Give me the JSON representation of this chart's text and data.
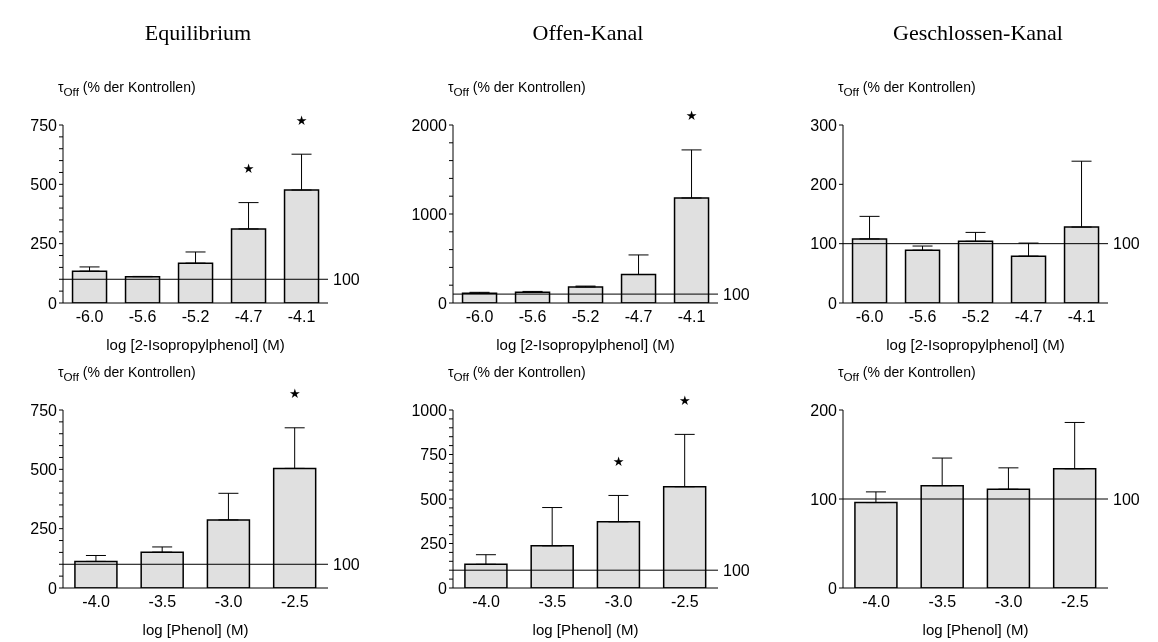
{
  "chart_data": [
    {
      "type": "bar",
      "title": "Equilibrium",
      "ylabel": "τ$_{Off}$ (% der Kontrollen)",
      "xlabel": "log [2-Isopropylphenol] (M)",
      "categories": [
        "-6.0",
        "-5.6",
        "-5.2",
        "-4.7",
        "-4.1"
      ],
      "values": [
        134,
        111,
        168,
        312,
        476
      ],
      "errors": [
        [
          134,
          152
        ],
        [
          111,
          112
        ],
        [
          168,
          215
        ],
        [
          312,
          423
        ],
        [
          476,
          627
        ]
      ],
      "color": "#e0e0e0",
      "ylim": [
        0,
        750
      ],
      "yticks": [
        0,
        {
          "value": 50,
          "label": null
        },
        {
          "value": 100,
          "label": null
        },
        {
          "value": 150,
          "label": null
        },
        {
          "value": 200,
          "label": null
        },
        250,
        {
          "value": 300,
          "label": null
        },
        {
          "value": 350,
          "label": null
        },
        {
          "value": 400,
          "label": null
        },
        {
          "value": 450,
          "label": null
        },
        500,
        {
          "value": 550,
          "label": null
        },
        {
          "value": 600,
          "label": null
        },
        {
          "value": 650,
          "label": null
        },
        {
          "value": 700,
          "label": null
        },
        750
      ],
      "ref_lines": [
        {
          "axis": "y",
          "value": 100,
          "label": "100"
        }
      ],
      "annotations": [
        {
          "text": "★",
          "x": "-4.7",
          "y": 423
        },
        {
          "text": "★",
          "x": "-4.1",
          "y": 627
        }
      ]
    },
    {
      "type": "bar",
      "title": "Offen-Kanal",
      "ylabel": "τ$_{Off}$ (% der Kontrollen)",
      "xlabel": "log [2-Isopropylphenol] (M)",
      "categories": [
        "-6.0",
        "-5.6",
        "-5.2",
        "-4.7",
        "-4.1"
      ],
      "values": [
        110,
        120,
        180,
        320,
        1180
      ],
      "errors": [
        [
          110,
          120
        ],
        [
          120,
          130
        ],
        [
          180,
          190
        ],
        [
          320,
          540
        ],
        [
          1180,
          1720
        ]
      ],
      "color": "#e0e0e0",
      "ylim": [
        0,
        2000
      ],
      "yticks": [
        0,
        {
          "value": 200,
          "label": null
        },
        {
          "value": 400,
          "label": null
        },
        {
          "value": 600,
          "label": null
        },
        {
          "value": 800,
          "label": null
        },
        1000,
        {
          "value": 1200,
          "label": null
        },
        {
          "value": 1400,
          "label": null
        },
        {
          "value": 1600,
          "label": null
        },
        {
          "value": 1800,
          "label": null
        },
        2000
      ],
      "ref_lines": [
        {
          "axis": "y",
          "value": 100,
          "label": "100"
        }
      ],
      "annotations": [
        {
          "text": "★",
          "x": "-4.1",
          "y": 1720
        }
      ]
    },
    {
      "type": "bar",
      "title": "Geschlossen-Kanal",
      "ylabel": "τ$_{Off}$ (% der Kontrollen)",
      "xlabel": "log [2-Isopropylphenol] (M)",
      "categories": [
        "-6.0",
        "-5.6",
        "-5.2",
        "-4.7",
        "-4.1"
      ],
      "values": [
        108,
        89,
        104,
        79,
        128
      ],
      "errors": [
        [
          108,
          146
        ],
        [
          89,
          96
        ],
        [
          104,
          119
        ],
        [
          79,
          101
        ],
        [
          128,
          239
        ]
      ],
      "color": "#e0e0e0",
      "ylim": [
        0,
        300
      ],
      "yticks": [
        0,
        100,
        200,
        300
      ],
      "ref_lines": [
        {
          "axis": "y",
          "value": 100,
          "label": "100"
        }
      ]
    },
    {
      "type": "bar",
      "ylabel": "τ$_{Off}$ (% der Kontrollen)",
      "xlabel": "log [Phenol] (M)",
      "categories": [
        "-4.0",
        "-3.5",
        "-3.0",
        "-2.5"
      ],
      "values": [
        112,
        151,
        287,
        504
      ],
      "errors": [
        [
          112,
          137
        ],
        [
          151,
          173
        ],
        [
          287,
          399
        ],
        [
          504,
          675
        ]
      ],
      "color": "#e0e0e0",
      "ylim": [
        0,
        750
      ],
      "yticks": [
        0,
        {
          "value": 50,
          "label": null
        },
        {
          "value": 100,
          "label": null
        },
        {
          "value": 150,
          "label": null
        },
        {
          "value": 200,
          "label": null
        },
        250,
        {
          "value": 300,
          "label": null
        },
        {
          "value": 350,
          "label": null
        },
        {
          "value": 400,
          "label": null
        },
        {
          "value": 450,
          "label": null
        },
        500,
        {
          "value": 550,
          "label": null
        },
        {
          "value": 600,
          "label": null
        },
        {
          "value": 650,
          "label": null
        },
        {
          "value": 700,
          "label": null
        },
        750
      ],
      "ref_lines": [
        {
          "axis": "y",
          "value": 100,
          "label": "100"
        }
      ],
      "annotations": [
        {
          "text": "★",
          "x": "-2.5",
          "y": 675
        }
      ]
    },
    {
      "type": "bar",
      "ylabel": "τ$_{Off}$ (% der Kontrollen)",
      "xlabel": "log [Phenol] (M)",
      "categories": [
        "-4.0",
        "-3.5",
        "-3.0",
        "-2.5"
      ],
      "values": [
        133,
        237,
        372,
        569
      ],
      "errors": [
        [
          133,
          187
        ],
        [
          237,
          452
        ],
        [
          372,
          520
        ],
        [
          569,
          863
        ]
      ],
      "color": "#e0e0e0",
      "ylim": [
        0,
        1000
      ],
      "yticks": [
        0,
        {
          "value": 50,
          "label": null
        },
        {
          "value": 100,
          "label": null
        },
        {
          "value": 150,
          "label": null
        },
        {
          "value": 200,
          "label": null
        },
        250,
        {
          "value": 300,
          "label": null
        },
        {
          "value": 350,
          "label": null
        },
        {
          "value": 400,
          "label": null
        },
        {
          "value": 450,
          "label": null
        },
        500,
        {
          "value": 550,
          "label": null
        },
        {
          "value": 600,
          "label": null
        },
        {
          "value": 650,
          "label": null
        },
        {
          "value": 700,
          "label": null
        },
        750,
        {
          "value": 800,
          "label": null
        },
        {
          "value": 850,
          "label": null
        },
        {
          "value": 900,
          "label": null
        },
        {
          "value": 950,
          "label": null
        },
        1000
      ],
      "ref_lines": [
        {
          "axis": "y",
          "value": 100,
          "label": "100"
        }
      ],
      "annotations": [
        {
          "text": "★",
          "x": "-3.0",
          "y": 520
        },
        {
          "text": "★",
          "x": "-2.5",
          "y": 863
        }
      ]
    },
    {
      "type": "bar",
      "ylabel": "τ$_{Off}$ (% der Kontrollen)",
      "xlabel": "log [Phenol] (M)",
      "categories": [
        "-4.0",
        "-3.5",
        "-3.0",
        "-2.5"
      ],
      "values": [
        96,
        115,
        111,
        134
      ],
      "errors": [
        [
          96,
          108
        ],
        [
          115,
          146
        ],
        [
          111,
          135
        ],
        [
          134,
          186
        ]
      ],
      "color": "#e0e0e0",
      "ylim": [
        0,
        200
      ],
      "yticks": [
        0,
        100,
        200
      ],
      "ref_lines": [
        {
          "axis": "y",
          "value": 100,
          "label": "100"
        }
      ]
    }
  ]
}
